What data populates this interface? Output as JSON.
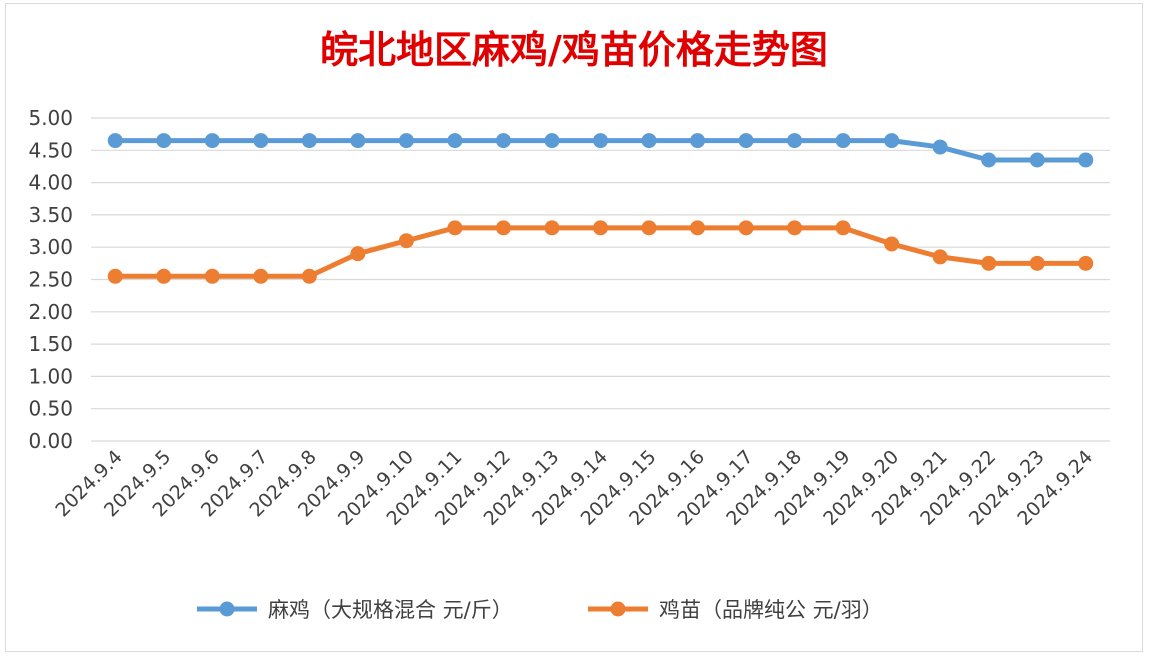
{
  "chart_data": {
    "type": "line",
    "title": "皖北地区麻鸡/鸡苗价格走势图",
    "xlabel": "",
    "ylabel": "",
    "ylim": [
      0,
      5
    ],
    "ytick_step": 0.5,
    "ytick_labels": [
      "0.00",
      "0.50",
      "1.00",
      "1.50",
      "2.00",
      "2.50",
      "3.00",
      "3.50",
      "4.00",
      "4.50",
      "5.00"
    ],
    "categories": [
      "2024.9.4",
      "2024.9.5",
      "2024.9.6",
      "2024.9.7",
      "2024.9.8",
      "2024.9.9",
      "2024.9.10",
      "2024.9.11",
      "2024.9.12",
      "2024.9.13",
      "2024.9.14",
      "2024.9.15",
      "2024.9.16",
      "2024.9.17",
      "2024.9.18",
      "2024.9.19",
      "2024.9.20",
      "2024.9.21",
      "2024.9.22",
      "2024.9.23",
      "2024.9.24"
    ],
    "series": [
      {
        "name": "麻鸡（大规格混合 元/斤）",
        "color": "#5b9bd5",
        "values": [
          4.65,
          4.65,
          4.65,
          4.65,
          4.65,
          4.65,
          4.65,
          4.65,
          4.65,
          4.65,
          4.65,
          4.65,
          4.65,
          4.65,
          4.65,
          4.65,
          4.65,
          4.55,
          4.35,
          4.35,
          4.35
        ]
      },
      {
        "name": "鸡苗（品牌纯公 元/羽）",
        "color": "#ed7d31",
        "values": [
          2.55,
          2.55,
          2.55,
          2.55,
          2.55,
          2.9,
          3.1,
          3.3,
          3.3,
          3.3,
          3.3,
          3.3,
          3.3,
          3.3,
          3.3,
          3.3,
          3.05,
          2.85,
          2.75,
          2.75,
          2.75
        ]
      }
    ],
    "grid": true,
    "legend_position": "bottom"
  }
}
